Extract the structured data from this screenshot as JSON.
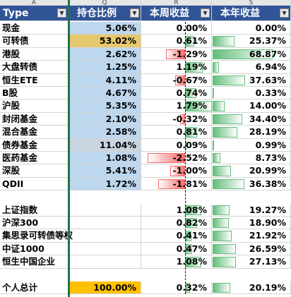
{
  "columns": [
    "A",
    "Q",
    "R",
    "S"
  ],
  "header": [
    "Type",
    "持仓比例",
    "本周收益",
    "本年收益"
  ],
  "groups": [
    [
      [
        "现金",
        "5.06%",
        "0.00%",
        "0.00%"
      ],
      [
        "可转债",
        "53.02%",
        "0.61%",
        "25.37%"
      ],
      [
        "港股",
        "2.62%",
        "-1.29%",
        "68.87%"
      ],
      [
        "大盘转债",
        "1.25%",
        "1.19%",
        "6.94%"
      ],
      [
        "恒生ETE",
        "4.11%",
        "-0.67%",
        "37.63%"
      ],
      [
        "B股",
        "4.67%",
        "0.74%",
        "0.33%"
      ],
      [
        "沪股",
        "5.35%",
        "1.79%",
        "14.00%"
      ],
      [
        "封闭基金",
        "2.10%",
        "-0.32%",
        "34.40%"
      ],
      [
        "混合基金",
        "2.58%",
        "0.81%",
        "28.19%"
      ],
      [
        "债券基金",
        "11.04%",
        "0.09%",
        "0.99%"
      ],
      [
        "医药基金",
        "1.08%",
        "-2.52%",
        "8.73%"
      ],
      [
        "深股",
        "5.41%",
        "-1.00%",
        "20.99%"
      ],
      [
        "QDII",
        "1.72%",
        "-1.81%",
        "36.38%"
      ]
    ],
    [
      [
        "上证指数",
        null,
        "1.08%",
        "19.27%"
      ],
      [
        "沪深300",
        null,
        "0.82%",
        "18.90%"
      ],
      [
        "集思录可转债等权",
        null,
        "0.41%",
        "21.92%"
      ],
      [
        "中证1000",
        null,
        "0.47%",
        "26.59%"
      ],
      [
        "恒生中国企业",
        null,
        "1.08%",
        "27.13%"
      ]
    ],
    [
      [
        "个人总计",
        "100.00%",
        "0.32%",
        "20.19%"
      ]
    ]
  ],
  "ratio_color": "#bdd7ee",
  "highlights": {
    "0.1": "#e6c86e",
    "0.9": "#c8d4df",
    "2.0": "#ffc000"
  }
}
